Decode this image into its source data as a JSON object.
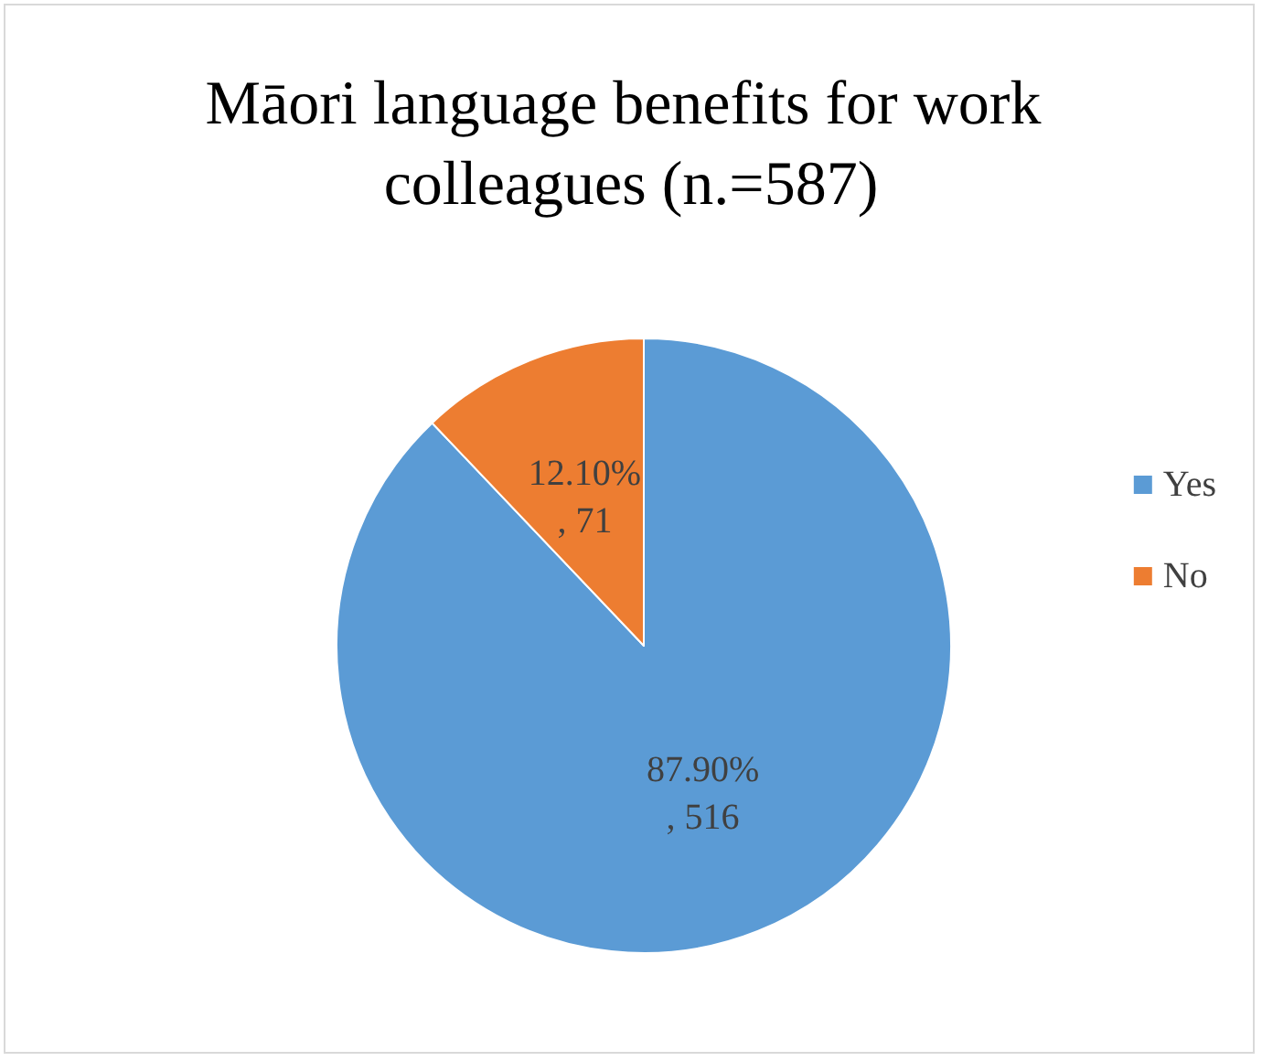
{
  "chart_data": {
    "type": "pie",
    "title": "Māori language benefits for work colleagues (n.=587)",
    "categories": [
      "Yes",
      "No"
    ],
    "values": [
      516,
      71
    ],
    "colors": [
      "#5b9bd5",
      "#ed7d31"
    ],
    "value_labels": [
      "87.90%, 516",
      "12.10%, 71"
    ],
    "legend": "right"
  }
}
